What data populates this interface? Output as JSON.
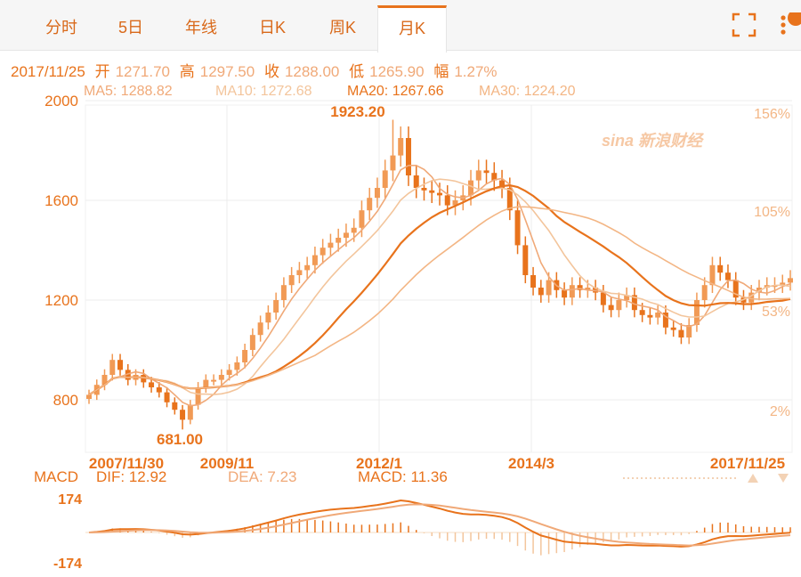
{
  "tabs": [
    {
      "label": "分时",
      "active": false
    },
    {
      "label": "5日",
      "active": false
    },
    {
      "label": "年线",
      "active": false
    },
    {
      "label": "日K",
      "active": false
    },
    {
      "label": "周K",
      "active": false
    },
    {
      "label": "月K",
      "active": true
    }
  ],
  "header_icons": [
    "fullscreen-icon",
    "more-icon"
  ],
  "info": {
    "date": "2017/11/25",
    "open_label": "开",
    "open": "1271.70",
    "high_label": "高",
    "high": "1297.50",
    "close_label": "收",
    "close": "1288.00",
    "low_label": "低",
    "low": "1265.90",
    "change_label": "幅",
    "change": "1.27%"
  },
  "ma": {
    "ma5": "MA5: 1288.82",
    "ma10": "MA10: 1272.68",
    "ma20": "MA20: 1267.66",
    "ma30": "MA30: 1224.20"
  },
  "watermark": "sina 新浪财经",
  "macd_info": {
    "title": "MACD",
    "dif": "DIF: 12.92",
    "dea": "DEA: 7.23",
    "macd": "MACD: 11.36"
  },
  "colors": {
    "accent": "#e8731c",
    "light": "#f3b685",
    "candle_up": "#f19a55",
    "candle_down": "#e8731c",
    "grid": "#ececec"
  },
  "chart_data": [
    {
      "type": "candlestick",
      "y_ticks": [
        2000,
        1600,
        1200,
        800
      ],
      "y_right_ticks": [
        "156%",
        "105%",
        "53%",
        "2%"
      ],
      "ylim": [
        681,
        2000
      ],
      "x_labels": [
        "2007/11/30",
        "2009/11",
        "2012/1",
        "2014/3",
        "2017/11/25"
      ],
      "annotations": [
        {
          "text": "1923.20",
          "value": 1923.2
        },
        {
          "text": "681.00",
          "value": 681.0
        }
      ],
      "close_series": [
        820,
        860,
        900,
        960,
        920,
        880,
        900,
        870,
        850,
        830,
        790,
        760,
        720,
        780,
        850,
        880,
        880,
        900,
        920,
        950,
        1000,
        1060,
        1110,
        1150,
        1200,
        1260,
        1300,
        1320,
        1340,
        1380,
        1410,
        1430,
        1450,
        1470,
        1490,
        1560,
        1610,
        1650,
        1720,
        1780,
        1850,
        1700,
        1650,
        1640,
        1630,
        1620,
        1580,
        1600,
        1620,
        1680,
        1720,
        1710,
        1680,
        1650,
        1560,
        1420,
        1300,
        1250,
        1220,
        1280,
        1240,
        1210,
        1260,
        1240,
        1250,
        1230,
        1180,
        1160,
        1200,
        1220,
        1160,
        1140,
        1130,
        1150,
        1090,
        1080,
        1050,
        1100,
        1200,
        1260,
        1340,
        1310,
        1280,
        1210,
        1190,
        1230,
        1250,
        1260,
        1260,
        1270,
        1288
      ],
      "ma_series": [
        {
          "name": "MA5",
          "color": "#f0a978"
        },
        {
          "name": "MA10",
          "color": "#f3c59c"
        },
        {
          "name": "MA20",
          "color": "#e8731c"
        },
        {
          "name": "MA30",
          "color": "#f3b685"
        }
      ]
    },
    {
      "type": "macd",
      "ylim": [
        -174,
        174
      ],
      "y_ticks": [
        "174",
        "-174"
      ],
      "series": [
        {
          "name": "DIF",
          "color": "#e8731c"
        },
        {
          "name": "DEA",
          "color": "#f0a978"
        }
      ]
    }
  ]
}
